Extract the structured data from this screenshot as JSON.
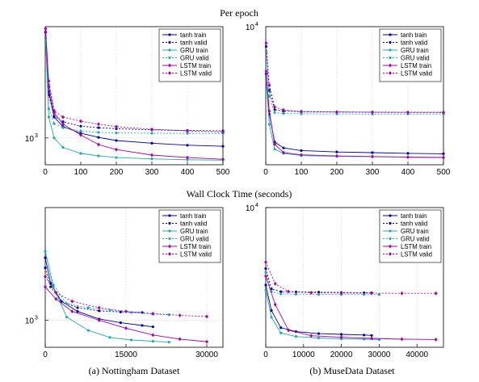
{
  "figure": {
    "row_titles": [
      "Per epoch",
      "Wall Clock Time (seconds)"
    ],
    "captions": [
      "(a) Nottingham Dataset",
      "(b) MuseData Dataset"
    ]
  },
  "chart_data": [
    {
      "type": "line",
      "name": "nottingham-per-epoch",
      "xlim": [
        0,
        500
      ],
      "xticks": [
        0,
        100,
        200,
        300,
        400,
        500
      ],
      "yscale": "log",
      "ylim": [
        650,
        6000
      ],
      "yticks": [
        {
          "value": 1000,
          "label": "10^3"
        }
      ],
      "grid": true,
      "legend": "top-right",
      "series": [
        {
          "name": "tanh train",
          "color": "#0000aa",
          "marker": "dot",
          "x": [
            1,
            10,
            25,
            50,
            100,
            150,
            200,
            300,
            400,
            500
          ],
          "y": [
            5500,
            2100,
            1400,
            1200,
            1080,
            1010,
            960,
            920,
            890,
            875
          ]
        },
        {
          "name": "tanh valid",
          "color": "#0000aa",
          "marker": "dot",
          "dash": true,
          "x": [
            1,
            10,
            25,
            50,
            100,
            150,
            200,
            300,
            400,
            500
          ],
          "y": [
            5500,
            2000,
            1420,
            1300,
            1210,
            1180,
            1160,
            1140,
            1130,
            1120
          ]
        },
        {
          "name": "GRU train",
          "color": "#22aaaa",
          "marker": "dot",
          "x": [
            1,
            10,
            25,
            50,
            100,
            150,
            200,
            300,
            400,
            500
          ],
          "y": [
            5000,
            1400,
            1000,
            860,
            780,
            750,
            730,
            715,
            705,
            700
          ]
        },
        {
          "name": "GRU valid",
          "color": "#22aaaa",
          "marker": "dot",
          "dash": true,
          "x": [
            1,
            10,
            25,
            50,
            100,
            150,
            200,
            300,
            400,
            500
          ],
          "y": [
            5000,
            1600,
            1260,
            1180,
            1120,
            1095,
            1085,
            1080,
            1078,
            1075
          ]
        },
        {
          "name": "LSTM train",
          "color": "#aa00aa",
          "marker": "diamond",
          "x": [
            1,
            10,
            25,
            50,
            100,
            150,
            200,
            300,
            400,
            500
          ],
          "y": [
            5800,
            2300,
            1500,
            1250,
            1050,
            900,
            830,
            760,
            730,
            710
          ]
        },
        {
          "name": "LSTM valid",
          "color": "#aa00aa",
          "marker": "diamond",
          "dash": true,
          "x": [
            1,
            10,
            25,
            50,
            100,
            150,
            200,
            300,
            400,
            500
          ],
          "y": [
            5800,
            2500,
            1550,
            1400,
            1310,
            1250,
            1200,
            1150,
            1120,
            1100
          ]
        }
      ]
    },
    {
      "type": "line",
      "name": "musedata-per-epoch",
      "xlim": [
        0,
        500
      ],
      "xticks": [
        0,
        100,
        200,
        300,
        400,
        500
      ],
      "yscale": "log",
      "ylim": [
        500,
        10000
      ],
      "yticks": [
        {
          "value": 10000,
          "label": "10^4"
        }
      ],
      "grid": true,
      "legend": "top-right",
      "series": [
        {
          "name": "tanh train",
          "color": "#0000aa",
          "marker": "dot",
          "x": [
            1,
            10,
            25,
            50,
            100,
            200,
            300,
            400,
            500
          ],
          "y": [
            3600,
            1500,
            820,
            720,
            680,
            660,
            650,
            640,
            635
          ]
        },
        {
          "name": "tanh valid",
          "color": "#0000aa",
          "marker": "dot",
          "dash": true,
          "x": [
            1,
            10,
            25,
            50,
            100,
            200,
            300,
            400,
            500
          ],
          "y": [
            6500,
            2500,
            1650,
            1600,
            1580,
            1570,
            1565,
            1560,
            1560
          ]
        },
        {
          "name": "GRU train",
          "color": "#22aaaa",
          "marker": "dot",
          "x": [
            1,
            10,
            25,
            50,
            100,
            200,
            300,
            400,
            500
          ],
          "y": [
            3200,
            1200,
            700,
            640,
            610,
            600,
            595,
            590,
            585
          ]
        },
        {
          "name": "GRU valid",
          "color": "#22aaaa",
          "marker": "dot",
          "dash": true,
          "x": [
            1,
            10,
            25,
            50,
            100,
            200,
            300,
            400,
            500
          ],
          "y": [
            5800,
            2200,
            1550,
            1520,
            1510,
            1505,
            1500,
            1500,
            1500
          ]
        },
        {
          "name": "LSTM train",
          "color": "#aa00aa",
          "marker": "diamond",
          "x": [
            1,
            10,
            25,
            50,
            100,
            200,
            300,
            400,
            500
          ],
          "y": [
            3800,
            1600,
            780,
            650,
            620,
            605,
            598,
            590,
            585
          ]
        },
        {
          "name": "LSTM valid",
          "color": "#aa00aa",
          "marker": "diamond",
          "dash": true,
          "x": [
            1,
            10,
            25,
            50,
            100,
            200,
            300,
            400,
            500
          ],
          "y": [
            7000,
            2800,
            1750,
            1640,
            1590,
            1570,
            1560,
            1555,
            1550
          ]
        }
      ]
    },
    {
      "type": "line",
      "name": "nottingham-wall-clock",
      "xlim": [
        0,
        33000
      ],
      "xticks": [
        0,
        15000,
        30000
      ],
      "yscale": "log",
      "ylim": [
        650,
        6000
      ],
      "yticks": [
        {
          "value": 1000,
          "label": "10^3"
        }
      ],
      "grid": true,
      "legend": "top-right",
      "series": [
        {
          "name": "tanh train",
          "color": "#0000aa",
          "marker": "dot",
          "x": [
            0,
            1000,
            3000,
            6000,
            10000,
            14000,
            18000,
            20000
          ],
          "y": [
            2700,
            1800,
            1350,
            1150,
            1020,
            960,
            920,
            900
          ]
        },
        {
          "name": "tanh valid",
          "color": "#0000aa",
          "marker": "dot",
          "dash": true,
          "x": [
            0,
            1000,
            3000,
            6000,
            10000,
            14000,
            18000
          ],
          "y": [
            2300,
            1700,
            1350,
            1220,
            1160,
            1140,
            1130
          ]
        },
        {
          "name": "GRU train",
          "color": "#22aaaa",
          "marker": "dot",
          "x": [
            0,
            1500,
            4000,
            8000,
            12000,
            16000,
            20000,
            23000
          ],
          "y": [
            3000,
            1700,
            1050,
            850,
            760,
            730,
            715,
            705
          ]
        },
        {
          "name": "GRU valid",
          "color": "#22aaaa",
          "marker": "dot",
          "dash": true,
          "x": [
            0,
            1500,
            4000,
            8000,
            12000,
            16000,
            20000,
            23000
          ],
          "y": [
            3000,
            1750,
            1300,
            1220,
            1170,
            1130,
            1100,
            1090
          ]
        },
        {
          "name": "LSTM train",
          "color": "#aa00aa",
          "marker": "diamond",
          "x": [
            0,
            2000,
            5000,
            10000,
            15000,
            20000,
            25000,
            30000
          ],
          "y": [
            1700,
            1400,
            1150,
            1000,
            880,
            790,
            740,
            710
          ]
        },
        {
          "name": "LSTM valid",
          "color": "#aa00aa",
          "marker": "diamond",
          "dash": true,
          "x": [
            0,
            2000,
            5000,
            10000,
            15000,
            20000,
            25000,
            30000
          ],
          "y": [
            2000,
            1550,
            1350,
            1220,
            1150,
            1110,
            1080,
            1060
          ]
        }
      ]
    },
    {
      "type": "line",
      "name": "musedata-wall-clock",
      "xlim": [
        0,
        47000
      ],
      "xticks": [
        0,
        10000,
        20000,
        30000,
        40000
      ],
      "yscale": "log",
      "ylim": [
        500,
        10000
      ],
      "yticks": [
        {
          "value": 10000,
          "label": "10^4"
        }
      ],
      "grid": true,
      "legend": "top-right",
      "series": [
        {
          "name": "tanh train",
          "color": "#0000aa",
          "marker": "dot",
          "x": [
            0,
            1500,
            4000,
            8000,
            14000,
            20000,
            26000,
            28000
          ],
          "y": [
            1900,
            1100,
            760,
            700,
            670,
            660,
            650,
            645
          ]
        },
        {
          "name": "tanh valid",
          "color": "#0000aa",
          "marker": "dot",
          "dash": true,
          "x": [
            0,
            1500,
            4000,
            8000,
            14000,
            20000,
            26000,
            28000
          ],
          "y": [
            2700,
            1750,
            1650,
            1640,
            1630,
            1620,
            1610,
            1610
          ]
        },
        {
          "name": "GRU train",
          "color": "#22aaaa",
          "marker": "dot",
          "x": [
            0,
            1500,
            4000,
            8000,
            14000,
            20000,
            26000,
            30000
          ],
          "y": [
            1700,
            950,
            680,
            630,
            610,
            600,
            595,
            590
          ]
        },
        {
          "name": "GRU valid",
          "color": "#22aaaa",
          "marker": "dot",
          "dash": true,
          "x": [
            0,
            1500,
            4000,
            8000,
            14000,
            20000,
            26000,
            30000
          ],
          "y": [
            2500,
            1650,
            1570,
            1560,
            1555,
            1550,
            1550,
            1550
          ]
        },
        {
          "name": "LSTM train",
          "color": "#aa00aa",
          "marker": "diamond",
          "x": [
            0,
            2500,
            6000,
            12000,
            20000,
            28000,
            36000,
            45000
          ],
          "y": [
            2300,
            1250,
            720,
            640,
            620,
            605,
            595,
            590
          ]
        },
        {
          "name": "LSTM valid",
          "color": "#aa00aa",
          "marker": "diamond",
          "dash": true,
          "x": [
            0,
            2500,
            6000,
            12000,
            20000,
            28000,
            36000,
            45000
          ],
          "y": [
            3100,
            1950,
            1650,
            1610,
            1600,
            1595,
            1590,
            1590
          ]
        }
      ]
    }
  ]
}
